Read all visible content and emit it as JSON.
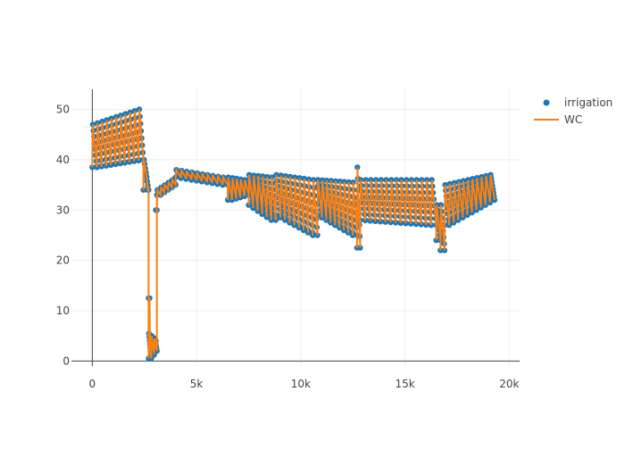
{
  "chart_data": {
    "type": "scatter",
    "title": "",
    "xlabel": "",
    "ylabel": "",
    "xlim": [
      -1000,
      20500
    ],
    "ylim": [
      -1,
      54
    ],
    "x_ticks": [
      0,
      5000,
      10000,
      15000,
      20000
    ],
    "x_tick_labels": [
      "0",
      "5k",
      "10k",
      "15k",
      "20k"
    ],
    "y_ticks": [
      0,
      10,
      20,
      30,
      40,
      50
    ],
    "y_tick_labels": [
      "0",
      "10",
      "20",
      "30",
      "40",
      "50"
    ],
    "grid": true,
    "legend_position": "top-right",
    "series": [
      {
        "name": "irrigation",
        "mode": "markers",
        "color": "#1f77b4"
      },
      {
        "name": "WC",
        "mode": "lines",
        "color": "#ff7f0e"
      }
    ],
    "segments": [
      {
        "x0": 0,
        "x1": 2450,
        "cycles": 11,
        "high": [
          47,
          50
        ],
        "low": [
          38.5,
          40
        ]
      },
      {
        "x0": 2450,
        "x1": 2700,
        "cycles": 1,
        "high": [
          40,
          40
        ],
        "low": [
          34,
          34
        ]
      },
      {
        "x0": 2700,
        "x1": 3100,
        "cycles": 3,
        "high": [
          5.5,
          4.5
        ],
        "low": [
          0.5,
          2
        ]
      },
      {
        "x0": 3100,
        "x1": 4000,
        "cycles": 5,
        "high": [
          34,
          36
        ],
        "low": [
          33,
          35
        ]
      },
      {
        "x0": 4000,
        "x1": 6500,
        "cycles": 10,
        "high": [
          38,
          36.5
        ],
        "low": [
          36.5,
          35
        ]
      },
      {
        "x0": 6500,
        "x1": 7500,
        "cycles": 5,
        "high": [
          36.5,
          36
        ],
        "low": [
          32,
          33
        ]
      },
      {
        "x0": 7500,
        "x1": 8800,
        "cycles": 6,
        "high": [
          37,
          36.5
        ],
        "low": [
          31,
          28
        ]
      },
      {
        "x0": 8800,
        "x1": 10800,
        "cycles": 9,
        "high": [
          37,
          36
        ],
        "low": [
          29,
          25
        ]
      },
      {
        "x0": 10800,
        "x1": 12700,
        "cycles": 9,
        "high": [
          36,
          35.5
        ],
        "low": [
          29,
          25
        ]
      },
      {
        "x0": 12700,
        "x1": 12850,
        "cycles": 1,
        "high": [
          38.5,
          38.5
        ],
        "low": [
          22.5,
          22.5
        ]
      },
      {
        "x0": 12850,
        "x1": 16500,
        "cycles": 15,
        "high": [
          36,
          36
        ],
        "low": [
          28,
          27
        ]
      },
      {
        "x0": 16500,
        "x1": 16900,
        "cycles": 2,
        "high": [
          31,
          31
        ],
        "low": [
          24,
          22
        ]
      },
      {
        "x0": 16900,
        "x1": 19300,
        "cycles": 11,
        "high": [
          35,
          37
        ],
        "low": [
          27,
          32
        ]
      }
    ],
    "transitions": [
      {
        "from": [
          2650,
          34
        ],
        "to": [
          2750,
          12.5
        ]
      },
      {
        "from": [
          3050,
          4
        ],
        "to": [
          3100,
          30
        ]
      }
    ],
    "annotations": [
      {
        "x": 2700,
        "y": 12.5
      },
      {
        "x": 3050,
        "y": 30
      }
    ]
  }
}
